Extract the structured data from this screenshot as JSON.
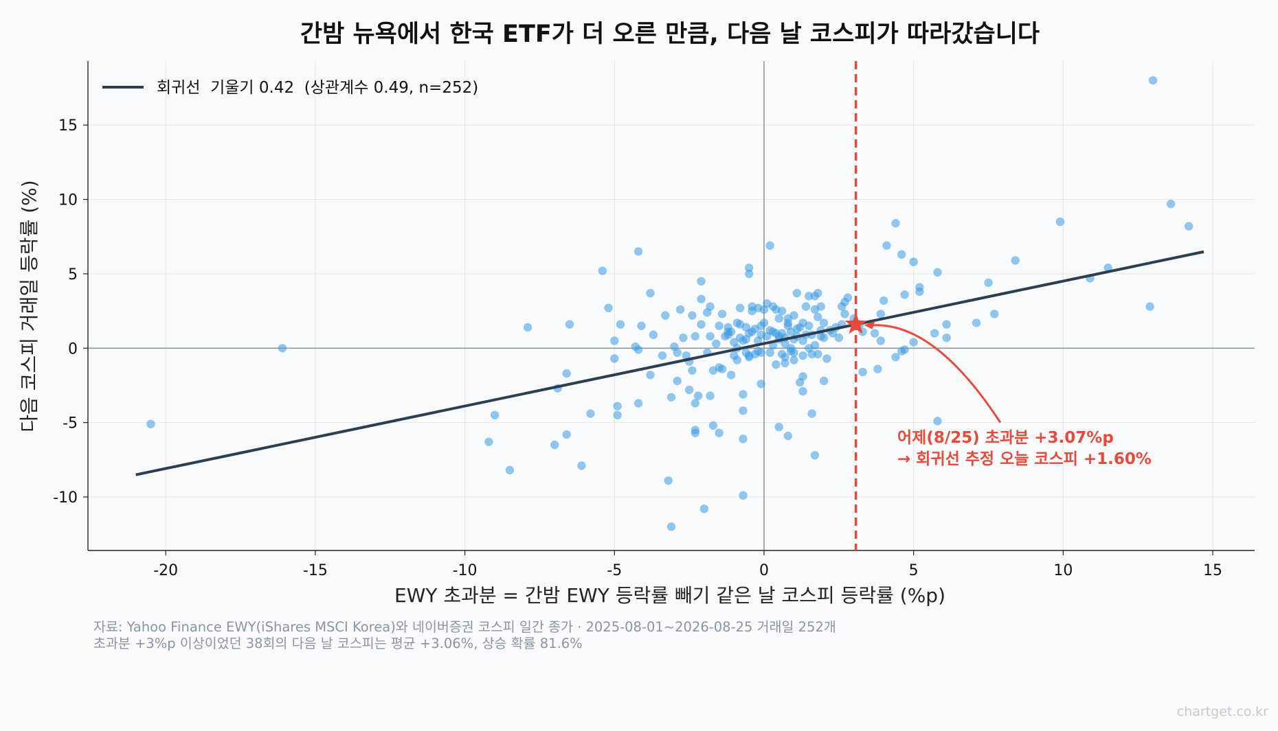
{
  "chart_data": {
    "type": "scatter",
    "title": "간밤 뉴욕에서 한국 ETF가 더 오른 만큼, 다음 날 코스피가 따라갔습니다",
    "xlabel": "EWY 초과분 = 간밤 EWY 등락률 빼기 같은 날 코스피 등락률 (%p)",
    "ylabel": "다음 코스피 거래일 등락률 (%)",
    "xlim": [
      -22.6,
      16.4
    ],
    "ylim": [
      -13.6,
      19.3
    ],
    "xticks": [
      -20,
      -15,
      -10,
      -5,
      0,
      5,
      10,
      15
    ],
    "yticks": [
      -10,
      -5,
      0,
      5,
      10,
      15
    ],
    "xtick_labels": [
      "-20",
      "-15",
      "-10",
      "-5",
      "0",
      "5",
      "10",
      "15"
    ],
    "ytick_labels": [
      "-10",
      "-5",
      "0",
      "5",
      "10",
      "15"
    ],
    "grid": true,
    "legend_position": "top-left",
    "legend_label": "회귀선  기울기 0.42  (상관계수 0.49, n=252)",
    "colors": {
      "points": "#3a9ae0",
      "regression": "#2c3e50",
      "highlight": "#e64a3a",
      "zero_lines": "#8a9a9a",
      "grid": "#e6e6e6"
    },
    "regression": {
      "slope": 0.42,
      "intercept": 0.31,
      "x_range": [
        -21.0,
        14.7
      ]
    },
    "highlight": {
      "x": 3.07,
      "y": 1.6,
      "vline_x": 3.07
    },
    "annotation": {
      "line1": "어제(8/25) 초과분 +3.07%p",
      "line2": "→ 회귀선 추정 오늘 코스피 +1.60%",
      "x": 4.5,
      "y": -6.0
    },
    "points": [
      [
        -20.5,
        -5.1
      ],
      [
        -16.1,
        0.0
      ],
      [
        -9.2,
        -6.3
      ],
      [
        -9.0,
        -4.5
      ],
      [
        -8.5,
        -8.2
      ],
      [
        -7.9,
        1.4
      ],
      [
        -7.0,
        -6.5
      ],
      [
        -6.9,
        -2.7
      ],
      [
        -6.6,
        -5.8
      ],
      [
        -6.6,
        -1.7
      ],
      [
        -6.5,
        1.6
      ],
      [
        -6.1,
        -7.9
      ],
      [
        -5.8,
        -4.4
      ],
      [
        -5.4,
        5.2
      ],
      [
        -5.2,
        2.7
      ],
      [
        -5.0,
        -0.7
      ],
      [
        -5.0,
        0.5
      ],
      [
        -4.9,
        -4.5
      ],
      [
        -4.9,
        -3.9
      ],
      [
        -4.8,
        1.6
      ],
      [
        -4.3,
        0.1
      ],
      [
        -4.2,
        -0.1
      ],
      [
        -4.2,
        6.5
      ],
      [
        -4.2,
        -3.7
      ],
      [
        -4.1,
        1.5
      ],
      [
        -3.8,
        3.7
      ],
      [
        -3.8,
        -1.8
      ],
      [
        -3.7,
        0.9
      ],
      [
        -3.4,
        -0.5
      ],
      [
        -3.3,
        2.2
      ],
      [
        -3.2,
        -8.9
      ],
      [
        -3.1,
        -3.3
      ],
      [
        -3.1,
        -12.0
      ],
      [
        -3.0,
        0.1
      ],
      [
        -2.9,
        -0.3
      ],
      [
        -2.9,
        -2.2
      ],
      [
        -2.8,
        2.6
      ],
      [
        -2.7,
        0.7
      ],
      [
        -2.6,
        -0.5
      ],
      [
        -2.5,
        -2.8
      ],
      [
        -2.5,
        -0.9
      ],
      [
        -2.4,
        2.2
      ],
      [
        -2.4,
        -1.5
      ],
      [
        -2.3,
        0.8
      ],
      [
        -2.3,
        -3.7
      ],
      [
        -2.3,
        -5.5
      ],
      [
        -2.3,
        -5.7
      ],
      [
        -2.2,
        -3.2
      ],
      [
        -2.1,
        3.3
      ],
      [
        -2.1,
        1.6
      ],
      [
        -2.1,
        4.5
      ],
      [
        -2.0,
        -10.8
      ],
      [
        -1.9,
        -0.3
      ],
      [
        -1.9,
        2.4
      ],
      [
        -1.8,
        2.8
      ],
      [
        -1.8,
        0.8
      ],
      [
        -1.8,
        -3.2
      ],
      [
        -1.7,
        -1.5
      ],
      [
        -1.7,
        -5.2
      ],
      [
        -1.6,
        0.3
      ],
      [
        -1.5,
        -1.3
      ],
      [
        -1.5,
        -5.7
      ],
      [
        -1.5,
        1.5
      ],
      [
        -1.4,
        -1.4
      ],
      [
        -1.4,
        2.3
      ],
      [
        -1.3,
        0.8
      ],
      [
        -1.2,
        1.4
      ],
      [
        -1.2,
        1.1
      ],
      [
        -1.2,
        0.9
      ],
      [
        -1.1,
        1.1
      ],
      [
        -1.1,
        -1.8
      ],
      [
        -1.0,
        0.4
      ],
      [
        -1.0,
        -0.5
      ],
      [
        -0.9,
        0.0
      ],
      [
        -0.9,
        1.7
      ],
      [
        -0.9,
        -0.8
      ],
      [
        -0.8,
        2.7
      ],
      [
        -0.8,
        0.7
      ],
      [
        -0.8,
        1.6
      ],
      [
        -0.7,
        -3.1
      ],
      [
        -0.7,
        -4.2
      ],
      [
        -0.7,
        -6.1
      ],
      [
        -0.7,
        -9.9
      ],
      [
        -0.7,
        0.5
      ],
      [
        -0.6,
        0.6
      ],
      [
        -0.6,
        -0.3
      ],
      [
        -0.6,
        1.4
      ],
      [
        -0.5,
        5.4
      ],
      [
        -0.5,
        5.0
      ],
      [
        -0.5,
        1.0
      ],
      [
        -0.5,
        -0.5
      ],
      [
        -0.5,
        -0.6
      ],
      [
        -0.4,
        2.5
      ],
      [
        -0.4,
        1.1
      ],
      [
        -0.4,
        2.8
      ],
      [
        -0.3,
        -0.4
      ],
      [
        -0.3,
        1.3
      ],
      [
        -0.2,
        2.7
      ],
      [
        -0.2,
        0.5
      ],
      [
        -0.2,
        -0.2
      ],
      [
        -0.1,
        -0.3
      ],
      [
        -0.1,
        1.5
      ],
      [
        -0.1,
        0.9
      ],
      [
        -0.1,
        -2.4
      ],
      [
        0.0,
        1.7
      ],
      [
        0.0,
        2.6
      ],
      [
        0.1,
        0.8
      ],
      [
        0.1,
        3.0
      ],
      [
        0.2,
        -0.3
      ],
      [
        0.2,
        1.2
      ],
      [
        0.2,
        6.9
      ],
      [
        0.3,
        0.2
      ],
      [
        0.3,
        2.8
      ],
      [
        0.3,
        1.1
      ],
      [
        0.4,
        2.6
      ],
      [
        0.4,
        1.0
      ],
      [
        0.4,
        -1.1
      ],
      [
        0.5,
        -5.3
      ],
      [
        0.5,
        0.8
      ],
      [
        0.5,
        0.6
      ],
      [
        0.5,
        2.0
      ],
      [
        0.6,
        1.0
      ],
      [
        0.6,
        2.5
      ],
      [
        0.6,
        -0.4
      ],
      [
        0.7,
        0.7
      ],
      [
        0.7,
        0.3
      ],
      [
        0.7,
        -1.0
      ],
      [
        0.7,
        -0.6
      ],
      [
        0.8,
        1.5
      ],
      [
        0.8,
        2.0
      ],
      [
        0.8,
        1.7
      ],
      [
        0.8,
        -5.9
      ],
      [
        0.9,
        0.0
      ],
      [
        0.9,
        1.1
      ],
      [
        0.9,
        -0.2
      ],
      [
        1.0,
        0.6
      ],
      [
        1.0,
        -0.3
      ],
      [
        1.0,
        2.2
      ],
      [
        1.0,
        -0.8
      ],
      [
        1.1,
        0.8
      ],
      [
        1.1,
        3.7
      ],
      [
        1.1,
        1.3
      ],
      [
        1.2,
        -2.3
      ],
      [
        1.2,
        1.4
      ],
      [
        1.3,
        -1.9
      ],
      [
        1.3,
        -0.5
      ],
      [
        1.3,
        1.7
      ],
      [
        1.3,
        0.5
      ],
      [
        1.3,
        -2.9
      ],
      [
        1.4,
        2.8
      ],
      [
        1.4,
        0.9
      ],
      [
        1.5,
        3.5
      ],
      [
        1.5,
        1.5
      ],
      [
        1.5,
        0.0
      ],
      [
        1.6,
        -0.4
      ],
      [
        1.6,
        0.9
      ],
      [
        1.6,
        -4.4
      ],
      [
        1.7,
        -7.2
      ],
      [
        1.7,
        3.5
      ],
      [
        1.7,
        0.2
      ],
      [
        1.7,
        2.6
      ],
      [
        1.8,
        -0.4
      ],
      [
        1.8,
        3.7
      ],
      [
        1.8,
        2.1
      ],
      [
        1.9,
        0.8
      ],
      [
        1.9,
        1.2
      ],
      [
        1.9,
        2.8
      ],
      [
        2.0,
        1.7
      ],
      [
        2.0,
        0.7
      ],
      [
        2.0,
        -2.2
      ],
      [
        2.1,
        -0.7
      ],
      [
        2.2,
        1.2
      ],
      [
        2.3,
        1.0
      ],
      [
        2.4,
        1.4
      ],
      [
        2.5,
        0.7
      ],
      [
        2.6,
        1.6
      ],
      [
        2.6,
        2.8
      ],
      [
        2.7,
        2.3
      ],
      [
        2.7,
        3.1
      ],
      [
        2.8,
        3.4
      ],
      [
        3.0,
        2.0
      ],
      [
        3.2,
        1.6
      ],
      [
        3.3,
        1.1
      ],
      [
        3.3,
        -1.6
      ],
      [
        3.7,
        1.0
      ],
      [
        3.8,
        -1.4
      ],
      [
        3.9,
        2.3
      ],
      [
        3.9,
        0.5
      ],
      [
        4.0,
        3.2
      ],
      [
        4.1,
        6.9
      ],
      [
        4.4,
        -0.6
      ],
      [
        4.4,
        8.4
      ],
      [
        4.6,
        6.3
      ],
      [
        4.6,
        -0.2
      ],
      [
        4.7,
        3.6
      ],
      [
        4.7,
        -0.1
      ],
      [
        5.0,
        5.8
      ],
      [
        5.0,
        0.4
      ],
      [
        5.2,
        4.1
      ],
      [
        5.2,
        3.8
      ],
      [
        5.7,
        1.0
      ],
      [
        5.8,
        5.1
      ],
      [
        5.8,
        -4.9
      ],
      [
        6.1,
        1.6
      ],
      [
        6.1,
        0.7
      ],
      [
        7.1,
        1.7
      ],
      [
        7.5,
        4.4
      ],
      [
        7.7,
        2.3
      ],
      [
        8.4,
        5.9
      ],
      [
        9.9,
        8.5
      ],
      [
        10.9,
        4.7
      ],
      [
        11.5,
        5.4
      ],
      [
        12.9,
        2.8
      ],
      [
        13.0,
        18.0
      ],
      [
        13.6,
        9.7
      ],
      [
        14.2,
        8.2
      ]
    ]
  },
  "source": {
    "line1": "자료: Yahoo Finance EWY(iShares MSCI Korea)와 네이버증권 코스피 일간 종가 · 2025-08-01~2026-08-25 거래일 252개",
    "line2": "초과분 +3%p 이상이었던 38회의 다음 날 코스피는 평균 +3.06%, 상승 확률 81.6%"
  },
  "watermark": "chartget.co.kr"
}
